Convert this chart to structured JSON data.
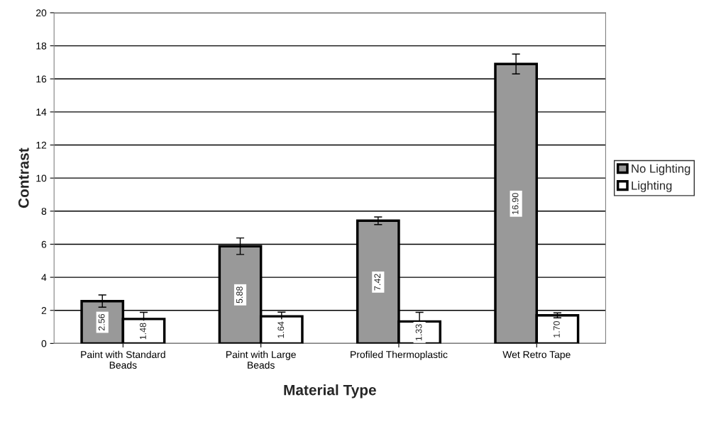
{
  "chart_data": {
    "type": "bar",
    "xlabel": "Material Type",
    "ylabel": "Contrast",
    "categories": [
      "Paint with Standard\nBeads",
      "Paint with Large\nBeads",
      "Profiled Thermoplastic",
      "Wet Retro Tape"
    ],
    "series": [
      {
        "name": "No Lighting",
        "color": "#999999",
        "values": [
          2.56,
          5.88,
          7.42,
          16.9
        ],
        "value_labels": [
          "2.56",
          "5.88",
          "7.42",
          "16.90"
        ],
        "errors": [
          0.37,
          0.5,
          0.23,
          0.6
        ]
      },
      {
        "name": "Lighting",
        "color": "#ffffff",
        "values": [
          1.48,
          1.64,
          1.33,
          1.7
        ],
        "value_labels": [
          "1.48",
          "1.64",
          "1.33",
          "1.70"
        ],
        "errors": [
          0.4,
          0.25,
          0.55,
          0.15
        ]
      }
    ],
    "ylim": [
      0,
      20
    ],
    "yticks": [
      0,
      2,
      4,
      6,
      8,
      10,
      12,
      14,
      16,
      18,
      20
    ],
    "grid": "y",
    "legend": "right"
  }
}
